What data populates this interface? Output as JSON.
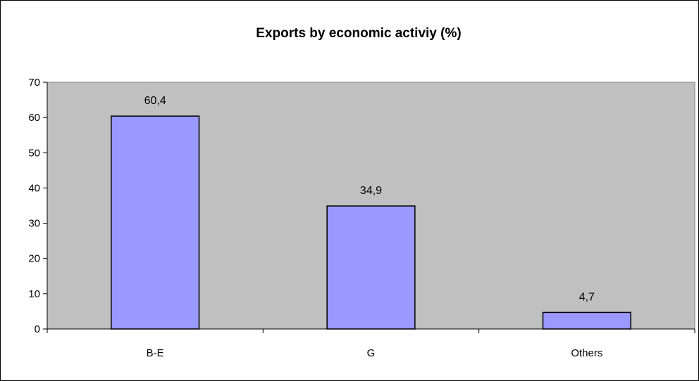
{
  "chart_data": {
    "type": "bar",
    "title": "Exports by economic activiy (%)",
    "categories": [
      "B-E",
      "G",
      "Others"
    ],
    "values": [
      60.4,
      34.9,
      4.7
    ],
    "data_labels": [
      "60,4",
      "34,9",
      "4,7"
    ],
    "ylim": [
      0,
      70
    ],
    "yticks": [
      0,
      10,
      20,
      30,
      40,
      50,
      60,
      70
    ],
    "grid": false,
    "legend": "none",
    "colors": {
      "bar_fill": "#9999FF",
      "bar_stroke": "#000000",
      "plot_background": "#C0C0C0",
      "axis": "#000000"
    }
  }
}
